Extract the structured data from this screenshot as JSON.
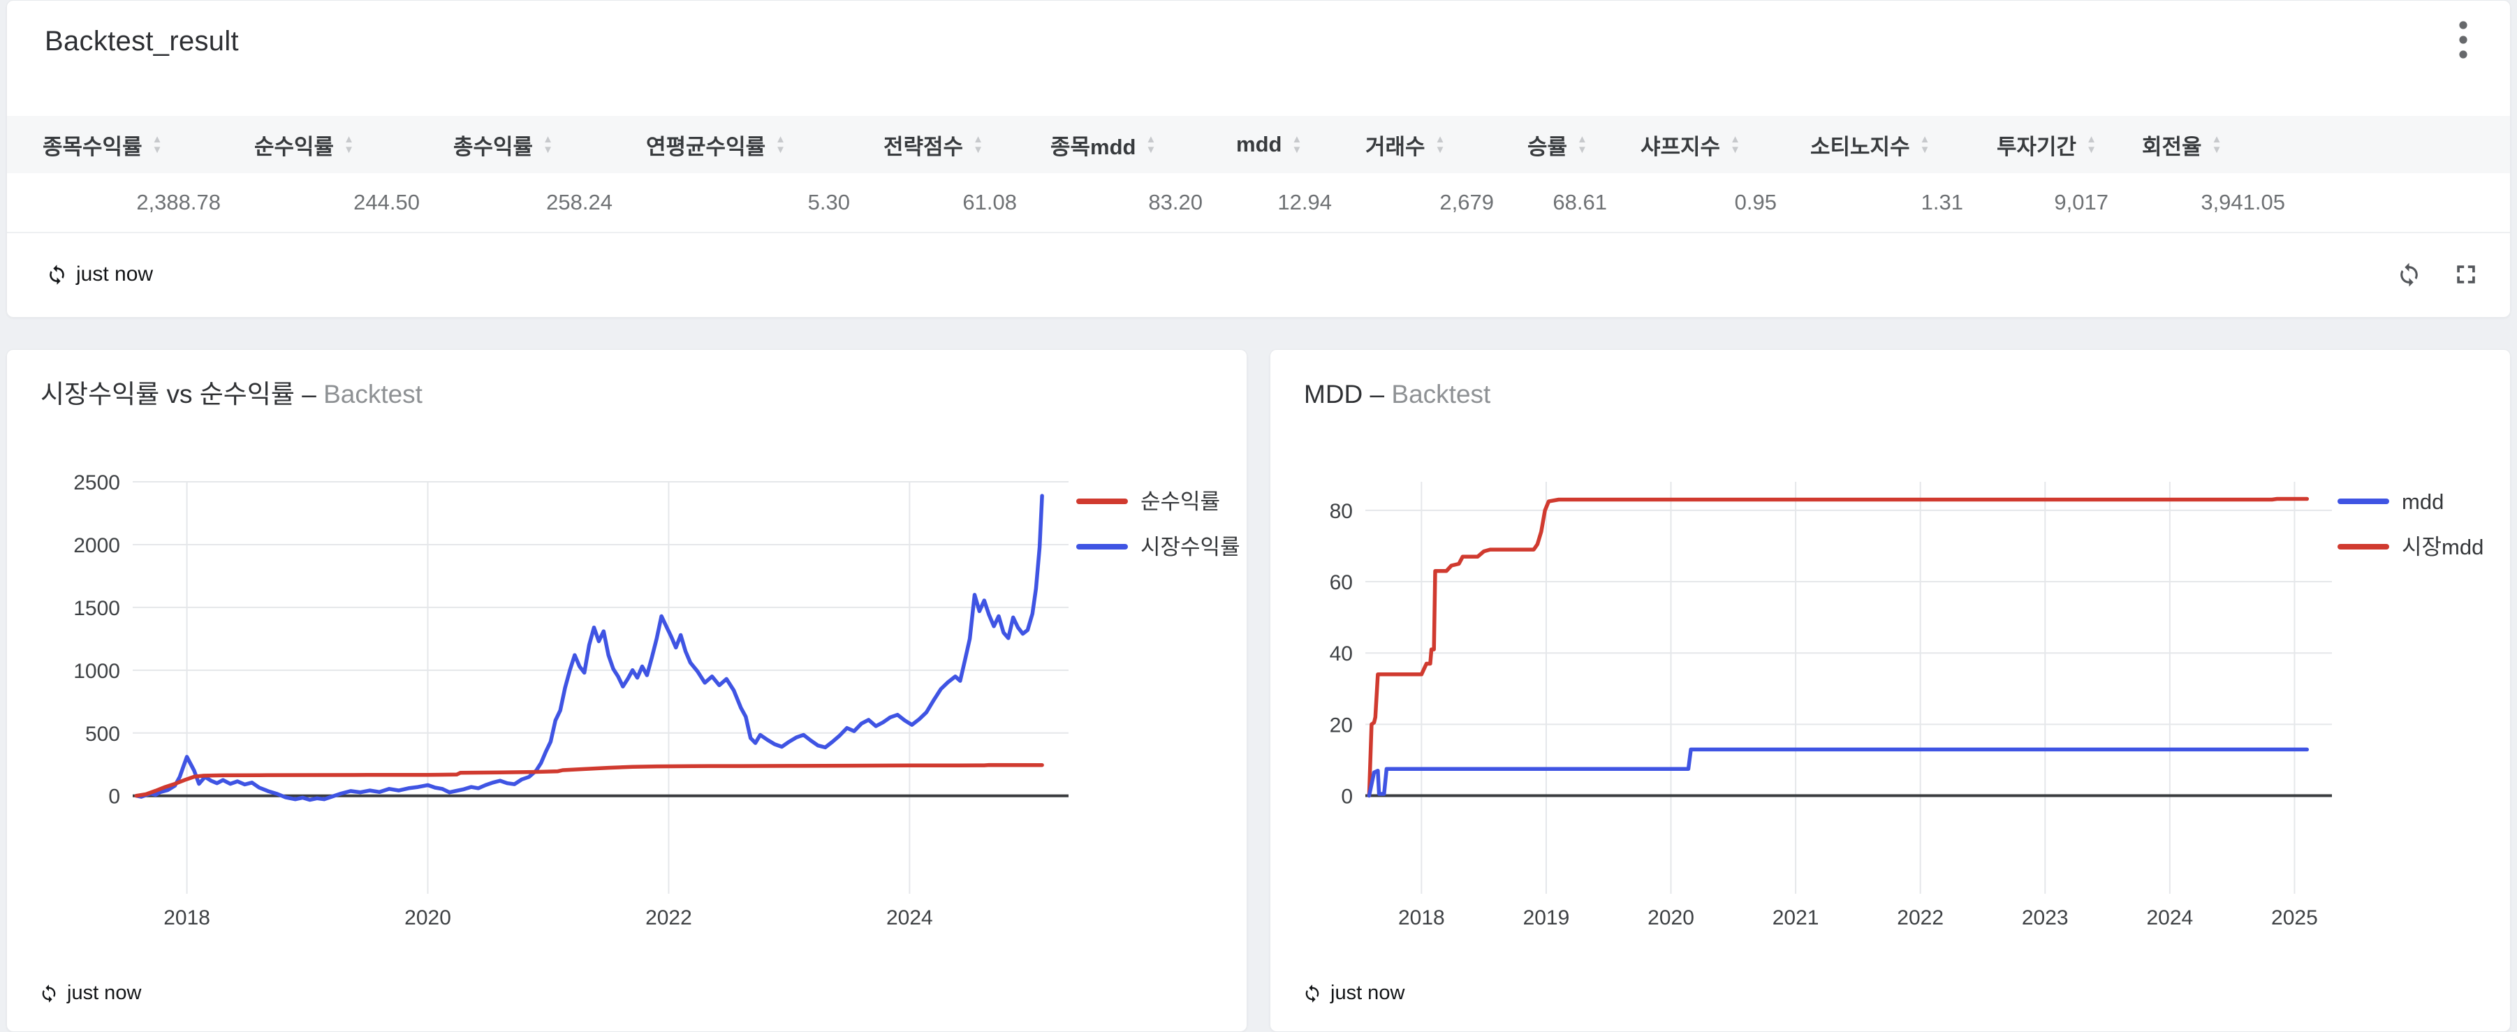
{
  "colors": {
    "red": "#d03a2f",
    "blue": "#3f54e3",
    "grid": "#e5e7ea",
    "zero_axis": "#3a3c3f",
    "header_band": "#f6f7f8",
    "page_bg": "#eef0f3"
  },
  "icons": {
    "sort_asc": "▲",
    "sort_desc": "▼",
    "kebab": "vertical-dots",
    "refresh": "sync-arrows",
    "fullscreen": "corner-brackets"
  },
  "panel": {
    "title": "Backtest_result",
    "table": {
      "columns": [
        "종목수익률",
        "순수익률",
        "총수익률",
        "연평균수익률",
        "전략점수",
        "종목mdd",
        "mdd",
        "거래수",
        "승률",
        "샤프지수",
        "소티노지수",
        "투자기간",
        "회전율"
      ],
      "row": [
        "2,388.78",
        "244.50",
        "258.24",
        "5.30",
        "61.08",
        "83.20",
        "12.94",
        "2,679",
        "68.61",
        "0.95",
        "1.31",
        "9,017",
        "3,941.05"
      ]
    },
    "last_refresh": "just now"
  },
  "chart_data": [
    {
      "type": "line",
      "title": "시장수익률 vs 순수익률",
      "separator": "–",
      "suffix": "Backtest",
      "xlabel": "",
      "ylabel": "",
      "x_ticks": [
        2018,
        2020,
        2022,
        2024
      ],
      "x_range": [
        2017.55,
        2025.32
      ],
      "y_ticks": [
        0,
        500,
        1000,
        1500,
        2000,
        2500
      ],
      "y_range": [
        -780,
        2500
      ],
      "grid": true,
      "legend_position": "right-top",
      "footer_refresh": "just now",
      "series": [
        {
          "name": "순수익률",
          "color": "#d03a2f",
          "points": [
            [
              2017.58,
              0
            ],
            [
              2017.66,
              12
            ],
            [
              2017.74,
              40
            ],
            [
              2017.82,
              70
            ],
            [
              2017.9,
              95
            ],
            [
              2017.98,
              125
            ],
            [
              2018.06,
              152
            ],
            [
              2018.14,
              160
            ],
            [
              2018.3,
              163
            ],
            [
              2018.6,
              164
            ],
            [
              2019.0,
              165
            ],
            [
              2019.5,
              166
            ],
            [
              2020.0,
              167
            ],
            [
              2020.24,
              169
            ],
            [
              2020.27,
              183
            ],
            [
              2020.6,
              186
            ],
            [
              2020.9,
              190
            ],
            [
              2021.08,
              195
            ],
            [
              2021.12,
              204
            ],
            [
              2021.3,
              213
            ],
            [
              2021.5,
              223
            ],
            [
              2021.7,
              230
            ],
            [
              2021.9,
              234
            ],
            [
              2022.2,
              236
            ],
            [
              2022.6,
              237
            ],
            [
              2023.0,
              238
            ],
            [
              2023.5,
              239.5
            ],
            [
              2024.0,
              241
            ],
            [
              2024.4,
              242
            ],
            [
              2024.62,
              242.5
            ],
            [
              2024.66,
              245
            ],
            [
              2025.1,
              244.5
            ]
          ]
        },
        {
          "name": "시장수익률",
          "color": "#3f54e3",
          "points": [
            [
              2017.58,
              0
            ],
            [
              2017.62,
              -8
            ],
            [
              2017.66,
              5
            ],
            [
              2017.7,
              18
            ],
            [
              2017.74,
              8
            ],
            [
              2017.78,
              30
            ],
            [
              2017.84,
              45
            ],
            [
              2017.9,
              80
            ],
            [
              2017.94,
              150
            ],
            [
              2017.97,
              230
            ],
            [
              2018.0,
              310
            ],
            [
              2018.03,
              255
            ],
            [
              2018.06,
              200
            ],
            [
              2018.1,
              95
            ],
            [
              2018.15,
              150
            ],
            [
              2018.2,
              120
            ],
            [
              2018.25,
              100
            ],
            [
              2018.3,
              125
            ],
            [
              2018.36,
              95
            ],
            [
              2018.42,
              115
            ],
            [
              2018.48,
              90
            ],
            [
              2018.54,
              105
            ],
            [
              2018.6,
              65
            ],
            [
              2018.68,
              35
            ],
            [
              2018.75,
              15
            ],
            [
              2018.82,
              -12
            ],
            [
              2018.9,
              -28
            ],
            [
              2018.96,
              -15
            ],
            [
              2019.02,
              -32
            ],
            [
              2019.08,
              -20
            ],
            [
              2019.14,
              -28
            ],
            [
              2019.2,
              -8
            ],
            [
              2019.28,
              18
            ],
            [
              2019.36,
              38
            ],
            [
              2019.44,
              28
            ],
            [
              2019.52,
              42
            ],
            [
              2019.6,
              30
            ],
            [
              2019.68,
              55
            ],
            [
              2019.76,
              42
            ],
            [
              2019.84,
              60
            ],
            [
              2019.92,
              70
            ],
            [
              2020.0,
              85
            ],
            [
              2020.06,
              65
            ],
            [
              2020.12,
              55
            ],
            [
              2020.18,
              28
            ],
            [
              2020.24,
              40
            ],
            [
              2020.3,
              52
            ],
            [
              2020.36,
              70
            ],
            [
              2020.42,
              60
            ],
            [
              2020.48,
              85
            ],
            [
              2020.54,
              105
            ],
            [
              2020.6,
              120
            ],
            [
              2020.66,
              100
            ],
            [
              2020.72,
              92
            ],
            [
              2020.78,
              130
            ],
            [
              2020.84,
              150
            ],
            [
              2020.9,
              200
            ],
            [
              2020.94,
              260
            ],
            [
              2020.98,
              350
            ],
            [
              2021.02,
              430
            ],
            [
              2021.06,
              600
            ],
            [
              2021.1,
              680
            ],
            [
              2021.14,
              860
            ],
            [
              2021.18,
              1000
            ],
            [
              2021.22,
              1120
            ],
            [
              2021.26,
              1030
            ],
            [
              2021.3,
              980
            ],
            [
              2021.34,
              1200
            ],
            [
              2021.38,
              1340
            ],
            [
              2021.42,
              1230
            ],
            [
              2021.46,
              1310
            ],
            [
              2021.5,
              1120
            ],
            [
              2021.54,
              1010
            ],
            [
              2021.58,
              950
            ],
            [
              2021.62,
              870
            ],
            [
              2021.66,
              930
            ],
            [
              2021.7,
              1000
            ],
            [
              2021.74,
              940
            ],
            [
              2021.78,
              1030
            ],
            [
              2021.82,
              960
            ],
            [
              2021.86,
              1100
            ],
            [
              2021.9,
              1250
            ],
            [
              2021.94,
              1430
            ],
            [
              2021.98,
              1350
            ],
            [
              2022.02,
              1270
            ],
            [
              2022.06,
              1180
            ],
            [
              2022.1,
              1280
            ],
            [
              2022.14,
              1150
            ],
            [
              2022.18,
              1060
            ],
            [
              2022.24,
              990
            ],
            [
              2022.3,
              900
            ],
            [
              2022.36,
              950
            ],
            [
              2022.42,
              880
            ],
            [
              2022.48,
              930
            ],
            [
              2022.54,
              840
            ],
            [
              2022.6,
              700
            ],
            [
              2022.64,
              630
            ],
            [
              2022.68,
              460
            ],
            [
              2022.72,
              420
            ],
            [
              2022.76,
              485
            ],
            [
              2022.82,
              445
            ],
            [
              2022.88,
              410
            ],
            [
              2022.94,
              390
            ],
            [
              2023.0,
              430
            ],
            [
              2023.06,
              465
            ],
            [
              2023.12,
              485
            ],
            [
              2023.18,
              440
            ],
            [
              2023.24,
              400
            ],
            [
              2023.3,
              385
            ],
            [
              2023.36,
              430
            ],
            [
              2023.42,
              480
            ],
            [
              2023.48,
              540
            ],
            [
              2023.54,
              515
            ],
            [
              2023.6,
              575
            ],
            [
              2023.66,
              605
            ],
            [
              2023.72,
              555
            ],
            [
              2023.78,
              585
            ],
            [
              2023.84,
              625
            ],
            [
              2023.9,
              645
            ],
            [
              2023.96,
              600
            ],
            [
              2024.02,
              565
            ],
            [
              2024.08,
              610
            ],
            [
              2024.14,
              665
            ],
            [
              2024.2,
              760
            ],
            [
              2024.26,
              850
            ],
            [
              2024.32,
              905
            ],
            [
              2024.38,
              950
            ],
            [
              2024.42,
              915
            ],
            [
              2024.46,
              1080
            ],
            [
              2024.5,
              1250
            ],
            [
              2024.54,
              1600
            ],
            [
              2024.58,
              1470
            ],
            [
              2024.62,
              1555
            ],
            [
              2024.66,
              1440
            ],
            [
              2024.7,
              1350
            ],
            [
              2024.74,
              1430
            ],
            [
              2024.78,
              1300
            ],
            [
              2024.82,
              1255
            ],
            [
              2024.86,
              1420
            ],
            [
              2024.9,
              1340
            ],
            [
              2024.94,
              1290
            ],
            [
              2024.98,
              1320
            ],
            [
              2025.02,
              1450
            ],
            [
              2025.05,
              1650
            ],
            [
              2025.08,
              1980
            ],
            [
              2025.1,
              2388
            ]
          ]
        }
      ]
    },
    {
      "type": "line",
      "title": "MDD",
      "separator": "–",
      "suffix": "Backtest",
      "xlabel": "",
      "ylabel": "",
      "x_ticks": [
        2018,
        2019,
        2020,
        2021,
        2022,
        2023,
        2024,
        2025
      ],
      "x_range": [
        2017.55,
        2025.3
      ],
      "y_ticks": [
        0,
        20,
        40,
        60,
        80
      ],
      "y_range": [
        -27.5,
        88
      ],
      "grid": true,
      "legend_position": "right-top",
      "footer_refresh": "just now",
      "series": [
        {
          "name": "mdd",
          "color": "#3f54e3",
          "points": [
            [
              2017.58,
              0
            ],
            [
              2017.62,
              6.5
            ],
            [
              2017.65,
              7
            ],
            [
              2017.66,
              0.5
            ],
            [
              2017.7,
              0.5
            ],
            [
              2017.72,
              7.5
            ],
            [
              2020.14,
              7.5
            ],
            [
              2020.16,
              12.94
            ],
            [
              2025.1,
              12.94
            ]
          ]
        },
        {
          "name": "시장mdd",
          "color": "#d03a2f",
          "points": [
            [
              2017.58,
              0
            ],
            [
              2017.6,
              20
            ],
            [
              2017.62,
              20.5
            ],
            [
              2017.63,
              22
            ],
            [
              2017.65,
              34
            ],
            [
              2018.0,
              34
            ],
            [
              2018.02,
              35.5
            ],
            [
              2018.04,
              37
            ],
            [
              2018.07,
              37
            ],
            [
              2018.08,
              41
            ],
            [
              2018.1,
              41
            ],
            [
              2018.11,
              63
            ],
            [
              2018.2,
              63
            ],
            [
              2018.24,
              64.5
            ],
            [
              2018.3,
              65
            ],
            [
              2018.33,
              67
            ],
            [
              2018.45,
              67
            ],
            [
              2018.5,
              68.5
            ],
            [
              2018.55,
              69
            ],
            [
              2018.9,
              69
            ],
            [
              2018.93,
              70.5
            ],
            [
              2018.96,
              74
            ],
            [
              2018.99,
              80
            ],
            [
              2019.02,
              82.5
            ],
            [
              2019.1,
              83
            ],
            [
              2024.82,
              83
            ],
            [
              2024.86,
              83.2
            ],
            [
              2025.1,
              83.2
            ]
          ]
        }
      ]
    }
  ]
}
